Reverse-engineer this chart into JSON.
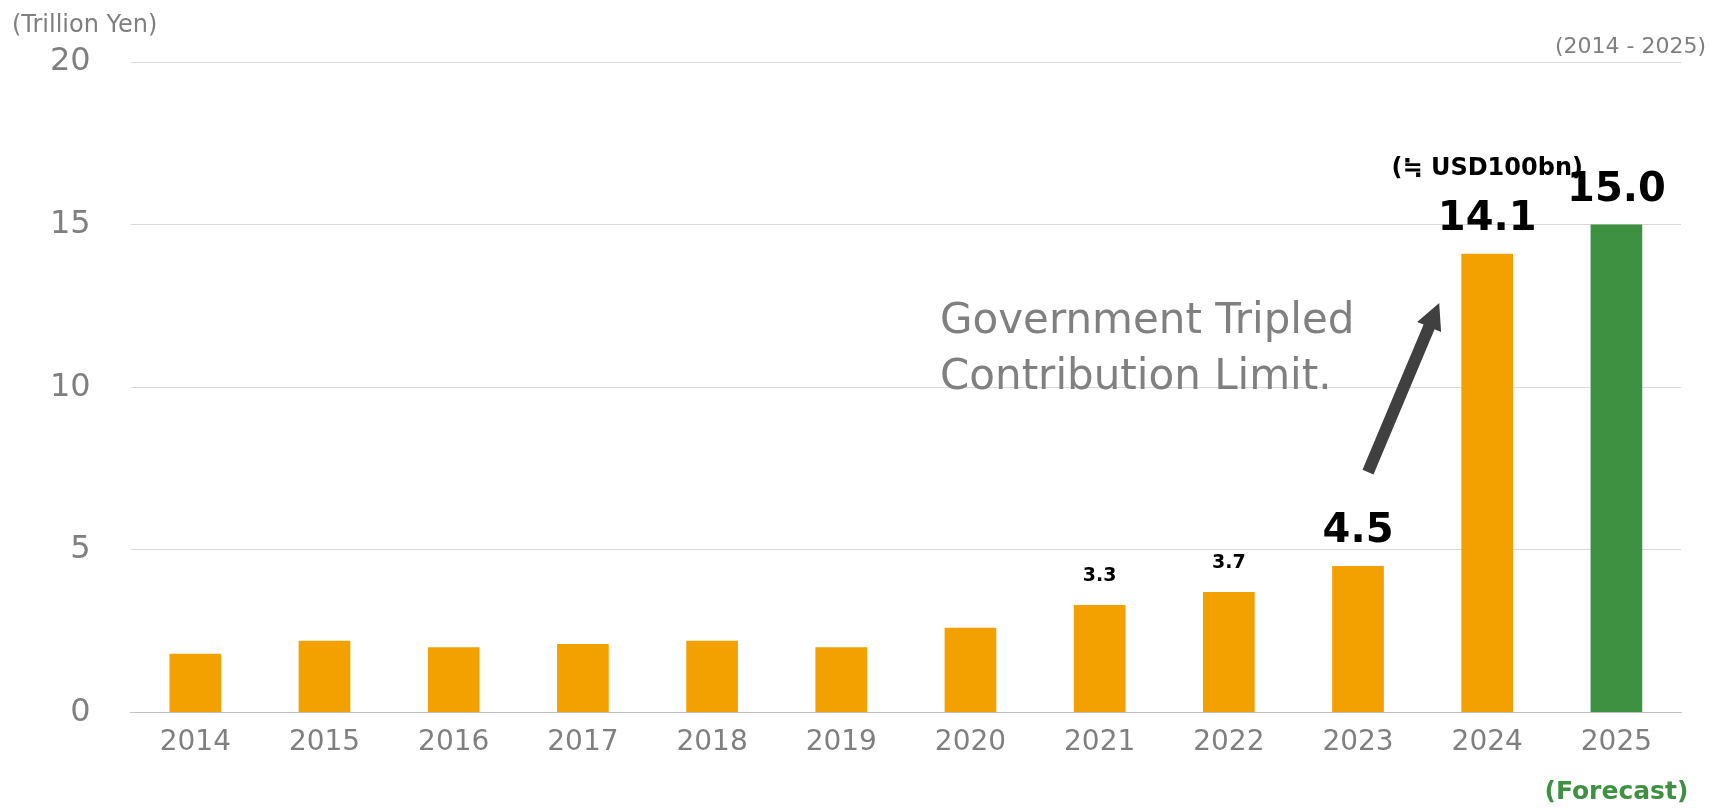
{
  "chart_data": {
    "type": "bar",
    "ylabel": "(Trillion Yen)",
    "categories": [
      "2014",
      "2015",
      "2016",
      "2017",
      "2018",
      "2019",
      "2020",
      "2021",
      "2022",
      "2023",
      "2024",
      "2025"
    ],
    "series": [
      {
        "values": [
          1.8,
          2.2,
          2.0,
          2.1,
          2.2,
          2.0,
          2.6,
          3.3,
          3.7,
          4.5,
          14.1,
          15.0
        ],
        "colors": [
          "#f2a100",
          "#f2a100",
          "#f2a100",
          "#f2a100",
          "#f2a100",
          "#f2a100",
          "#f2a100",
          "#f2a100",
          "#f2a100",
          "#f2a100",
          "#f2a100",
          "#3f9142"
        ],
        "value_labels": [
          null,
          null,
          null,
          null,
          null,
          null,
          null,
          "3.3",
          "3.7",
          "4.5",
          "14.1",
          "15.0"
        ]
      }
    ],
    "ylim": [
      0,
      20
    ],
    "yticks": [
      0,
      5,
      10,
      15,
      20
    ],
    "grid": "y",
    "legend": false,
    "annotations": [
      "(2014 - 2025)",
      "(≒ USD100bn)",
      "Government Tripled Contribution Limit.",
      "(Forecast)"
    ]
  }
}
